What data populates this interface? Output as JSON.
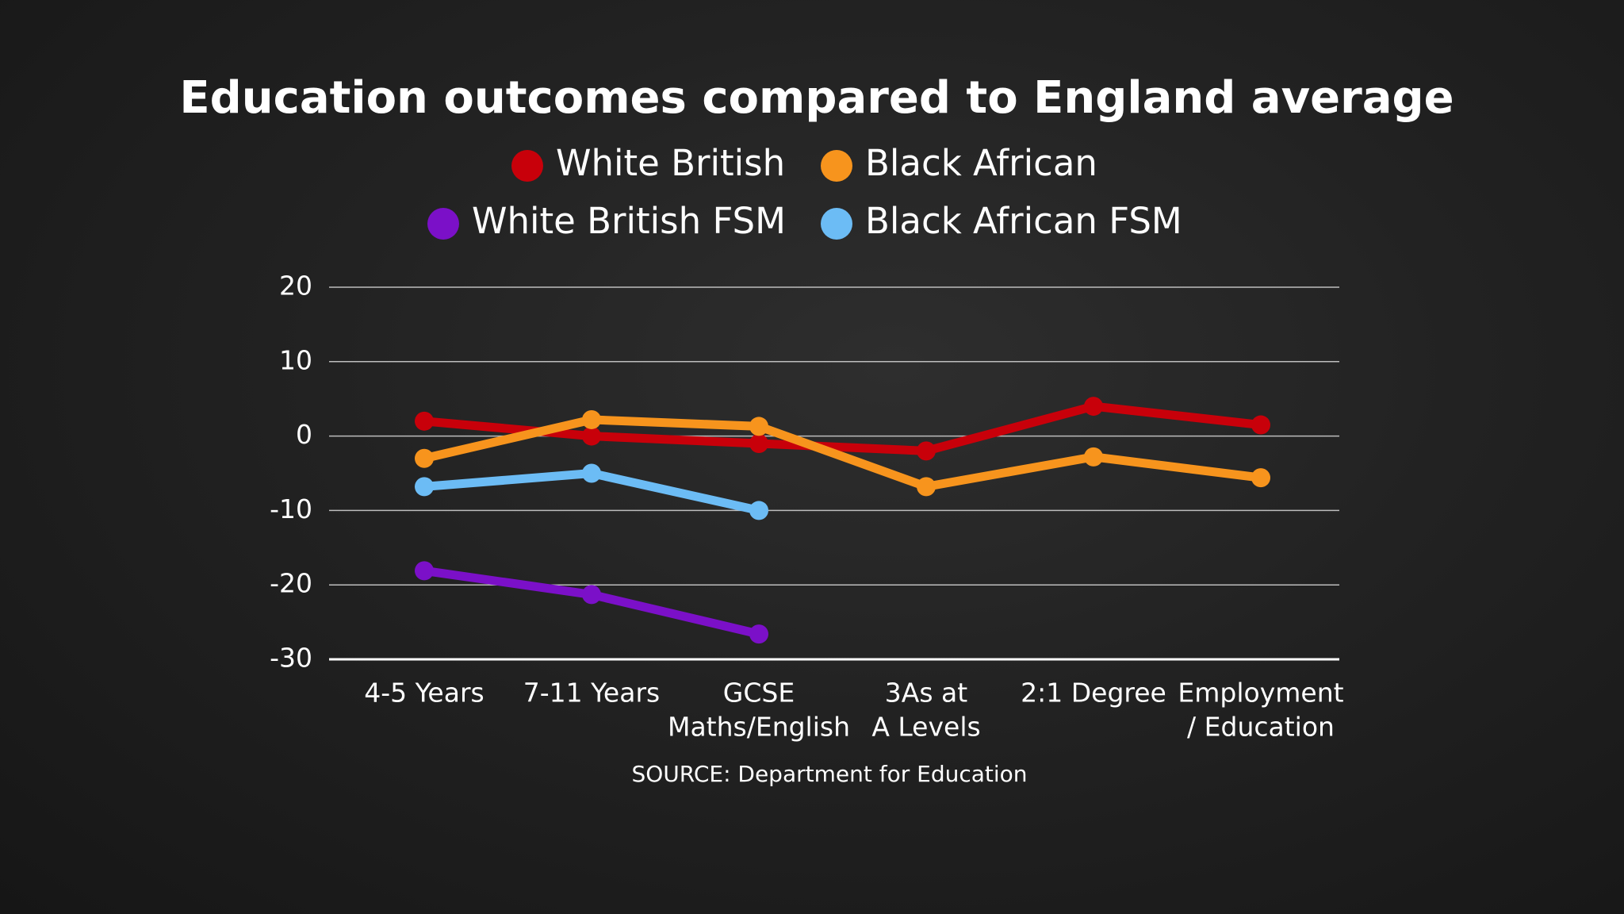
{
  "chart_data": {
    "type": "line",
    "title": "Education outcomes compared to England average",
    "categories": [
      [
        "4-5 Years"
      ],
      [
        "7-11 Years"
      ],
      [
        "GCSE",
        "Maths/English"
      ],
      [
        "3As at",
        "A Levels"
      ],
      [
        "2:1 Degree"
      ],
      [
        "Employment",
        "/ Education"
      ]
    ],
    "series": [
      {
        "name": "White British",
        "color": "#c8000a",
        "values": [
          2,
          0,
          -1,
          -2,
          4,
          1.5
        ]
      },
      {
        "name": "Black African",
        "color": "#f7941d",
        "values": [
          -3,
          2.2,
          1.3,
          -6.8,
          -2.8,
          -5.6
        ]
      },
      {
        "name": "White British FSM",
        "color": "#7b10c8",
        "values": [
          -18.1,
          -21.3,
          -26.6,
          null,
          null,
          null
        ]
      },
      {
        "name": "Black African FSM",
        "color": "#6cbcf5",
        "values": [
          -6.8,
          -5,
          -10,
          null,
          null,
          null
        ]
      }
    ],
    "ylim": [
      -30,
      20
    ],
    "yticks": [
      -30,
      -20,
      -10,
      0,
      10,
      20
    ],
    "grid": true,
    "source": "SOURCE: Department for Education"
  }
}
